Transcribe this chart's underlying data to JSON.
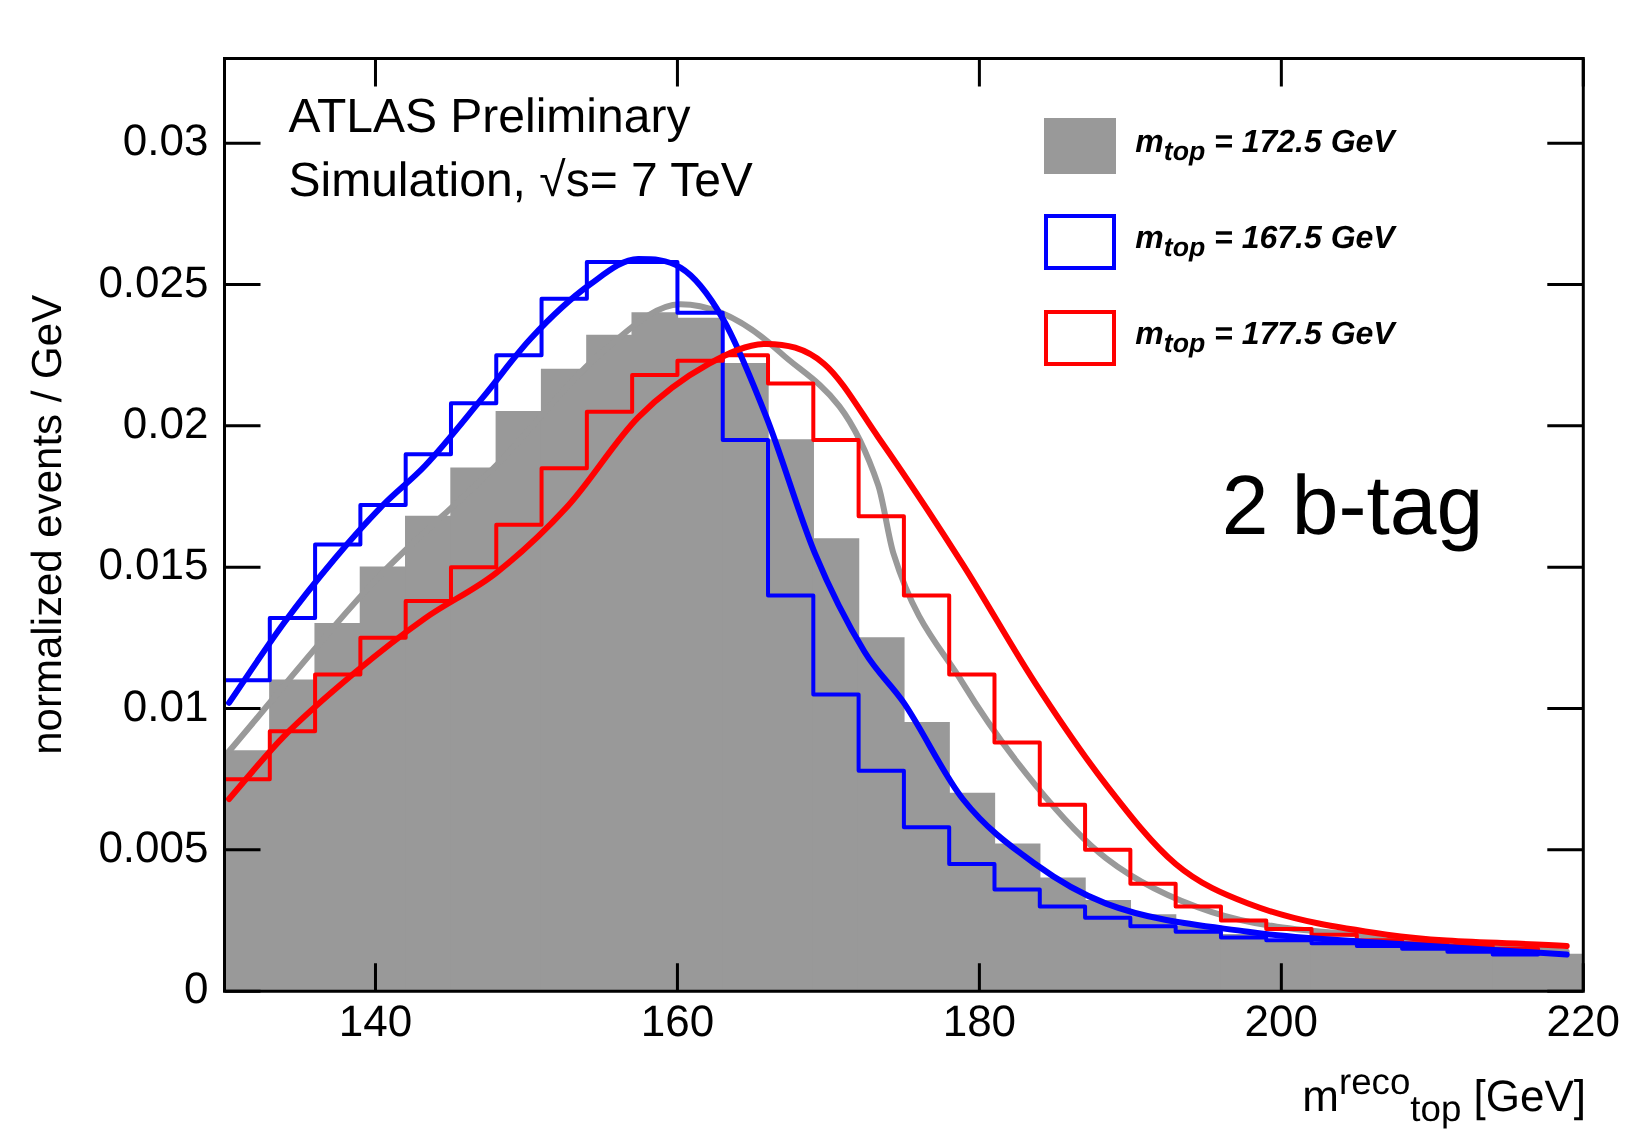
{
  "chart_data": {
    "type": "histogram",
    "xlabel": "m$^{reco}$$_{top}$ [GeV]",
    "ylabel": "normalized events / GeV",
    "annotations": [
      "ATLAS Preliminary",
      "Simulation, √s= 7 TeV",
      "2 b-tag"
    ],
    "bins": [
      130,
      133,
      136,
      139,
      142,
      145,
      148,
      151,
      154,
      157,
      160,
      163,
      166,
      169,
      172,
      175,
      178,
      181,
      184,
      187,
      190,
      193,
      196,
      199,
      202,
      205,
      208,
      211,
      214,
      217,
      220
    ],
    "series": [
      {
        "name": "m$_{top}$ = 172.5 GeV",
        "color": "#999999",
        "values": [
          0.0085,
          0.011,
          0.013,
          0.015,
          0.0168,
          0.0185,
          0.0205,
          0.022,
          0.0232,
          0.024,
          0.0238,
          0.0222,
          0.0195,
          0.016,
          0.0125,
          0.0095,
          0.007,
          0.0052,
          0.004,
          0.0032,
          0.0027,
          0.0023,
          0.002,
          0.0018,
          0.0017,
          0.0016,
          0.0015,
          0.0014,
          0.0014,
          0.0013
        ]
      },
      {
        "type": "line",
        "color": "#999999",
        "x": [
          130,
          140.1,
          148,
          155,
          160.2,
          166.8,
          173.3,
          174.3,
          178.9,
          183.7,
          188.4,
          195.4,
          207,
          218.9
        ],
        "values": [
          0.0083,
          0.0146,
          0.0186,
          0.0226,
          0.0243,
          0.0226,
          0.0179,
          0.0155,
          0.0109,
          0.0073,
          0.0047,
          0.0028,
          0.0019,
          0.0014
        ]
      },
      {
        "name": "m$_{top}$ = 167.5 GeV",
        "type": "step",
        "color": "#0000ff",
        "x": [
          130,
          133,
          136,
          139,
          142,
          145,
          148,
          151,
          154,
          157,
          160,
          163,
          166,
          169,
          172,
          175,
          178,
          181,
          184,
          187,
          190,
          193,
          196,
          199,
          202,
          205,
          208,
          211,
          214,
          217
        ],
        "values": [
          0.011,
          0.0132,
          0.0158,
          0.0172,
          0.019,
          0.0208,
          0.0225,
          0.0245,
          0.0258,
          0.0258,
          0.024,
          0.0195,
          0.014,
          0.0105,
          0.0078,
          0.0058,
          0.0045,
          0.0036,
          0.003,
          0.0026,
          0.0023,
          0.0021,
          0.0019,
          0.0018,
          0.0017,
          0.0016,
          0.0015,
          0.0014,
          0.0013,
          0.0013
        ]
      },
      {
        "name": "m$_{top}$ = 177.5 GeV",
        "type": "step",
        "color": "#ff0000",
        "x": [
          130,
          133,
          136,
          139,
          142,
          145,
          148,
          151,
          154,
          157,
          160,
          163,
          166,
          169,
          172,
          175,
          178,
          181,
          184,
          187,
          190,
          193,
          196,
          199,
          202,
          205,
          208,
          211,
          214,
          217
        ],
        "values": [
          0.0075,
          0.0092,
          0.0112,
          0.0125,
          0.0138,
          0.015,
          0.0165,
          0.0185,
          0.0205,
          0.0218,
          0.0223,
          0.0225,
          0.0215,
          0.0195,
          0.0168,
          0.014,
          0.0112,
          0.0088,
          0.0066,
          0.005,
          0.0038,
          0.003,
          0.0025,
          0.0022,
          0.002,
          0.0018,
          0.0017,
          0.0016,
          0.0015,
          0.0014
        ]
      },
      {
        "type": "line",
        "color": "#0000ff",
        "x": [
          130.3,
          133.9,
          137.3,
          140.5,
          143.3,
          147.1,
          150.3,
          154.2,
          157.4,
          160.2,
          163,
          165.9,
          169.1,
          172.4,
          175,
          178.9,
          183.7,
          188.4,
          197.8,
          207,
          218.9
        ],
        "values": [
          0.0102,
          0.013,
          0.0153,
          0.0172,
          0.0186,
          0.021,
          0.0231,
          0.025,
          0.0259,
          0.0256,
          0.0238,
          0.0203,
          0.0155,
          0.012,
          0.0102,
          0.0068,
          0.0045,
          0.0031,
          0.0021,
          0.0017,
          0.0013
        ]
      },
      {
        "type": "line",
        "color": "#ff0000",
        "x": [
          130.3,
          133.9,
          138.7,
          143.3,
          148,
          152.8,
          157.4,
          162.1,
          165.9,
          169.7,
          173.3,
          178.9,
          183.7,
          188.4,
          193,
          197.8,
          207,
          218.9
        ],
        "values": [
          0.0068,
          0.009,
          0.0113,
          0.0132,
          0.0148,
          0.0172,
          0.0203,
          0.0222,
          0.0229,
          0.0222,
          0.0196,
          0.0151,
          0.0109,
          0.0073,
          0.0045,
          0.0031,
          0.002,
          0.0016
        ]
      }
    ],
    "xlim": [
      130,
      220
    ],
    "xticks": [
      140,
      160,
      180,
      200,
      220
    ],
    "ylim": [
      0,
      0.033
    ],
    "yticks": [
      0,
      0.005,
      0.01,
      0.015,
      0.02,
      0.025,
      0.03
    ],
    "legend": "top right",
    "marker": "none"
  }
}
